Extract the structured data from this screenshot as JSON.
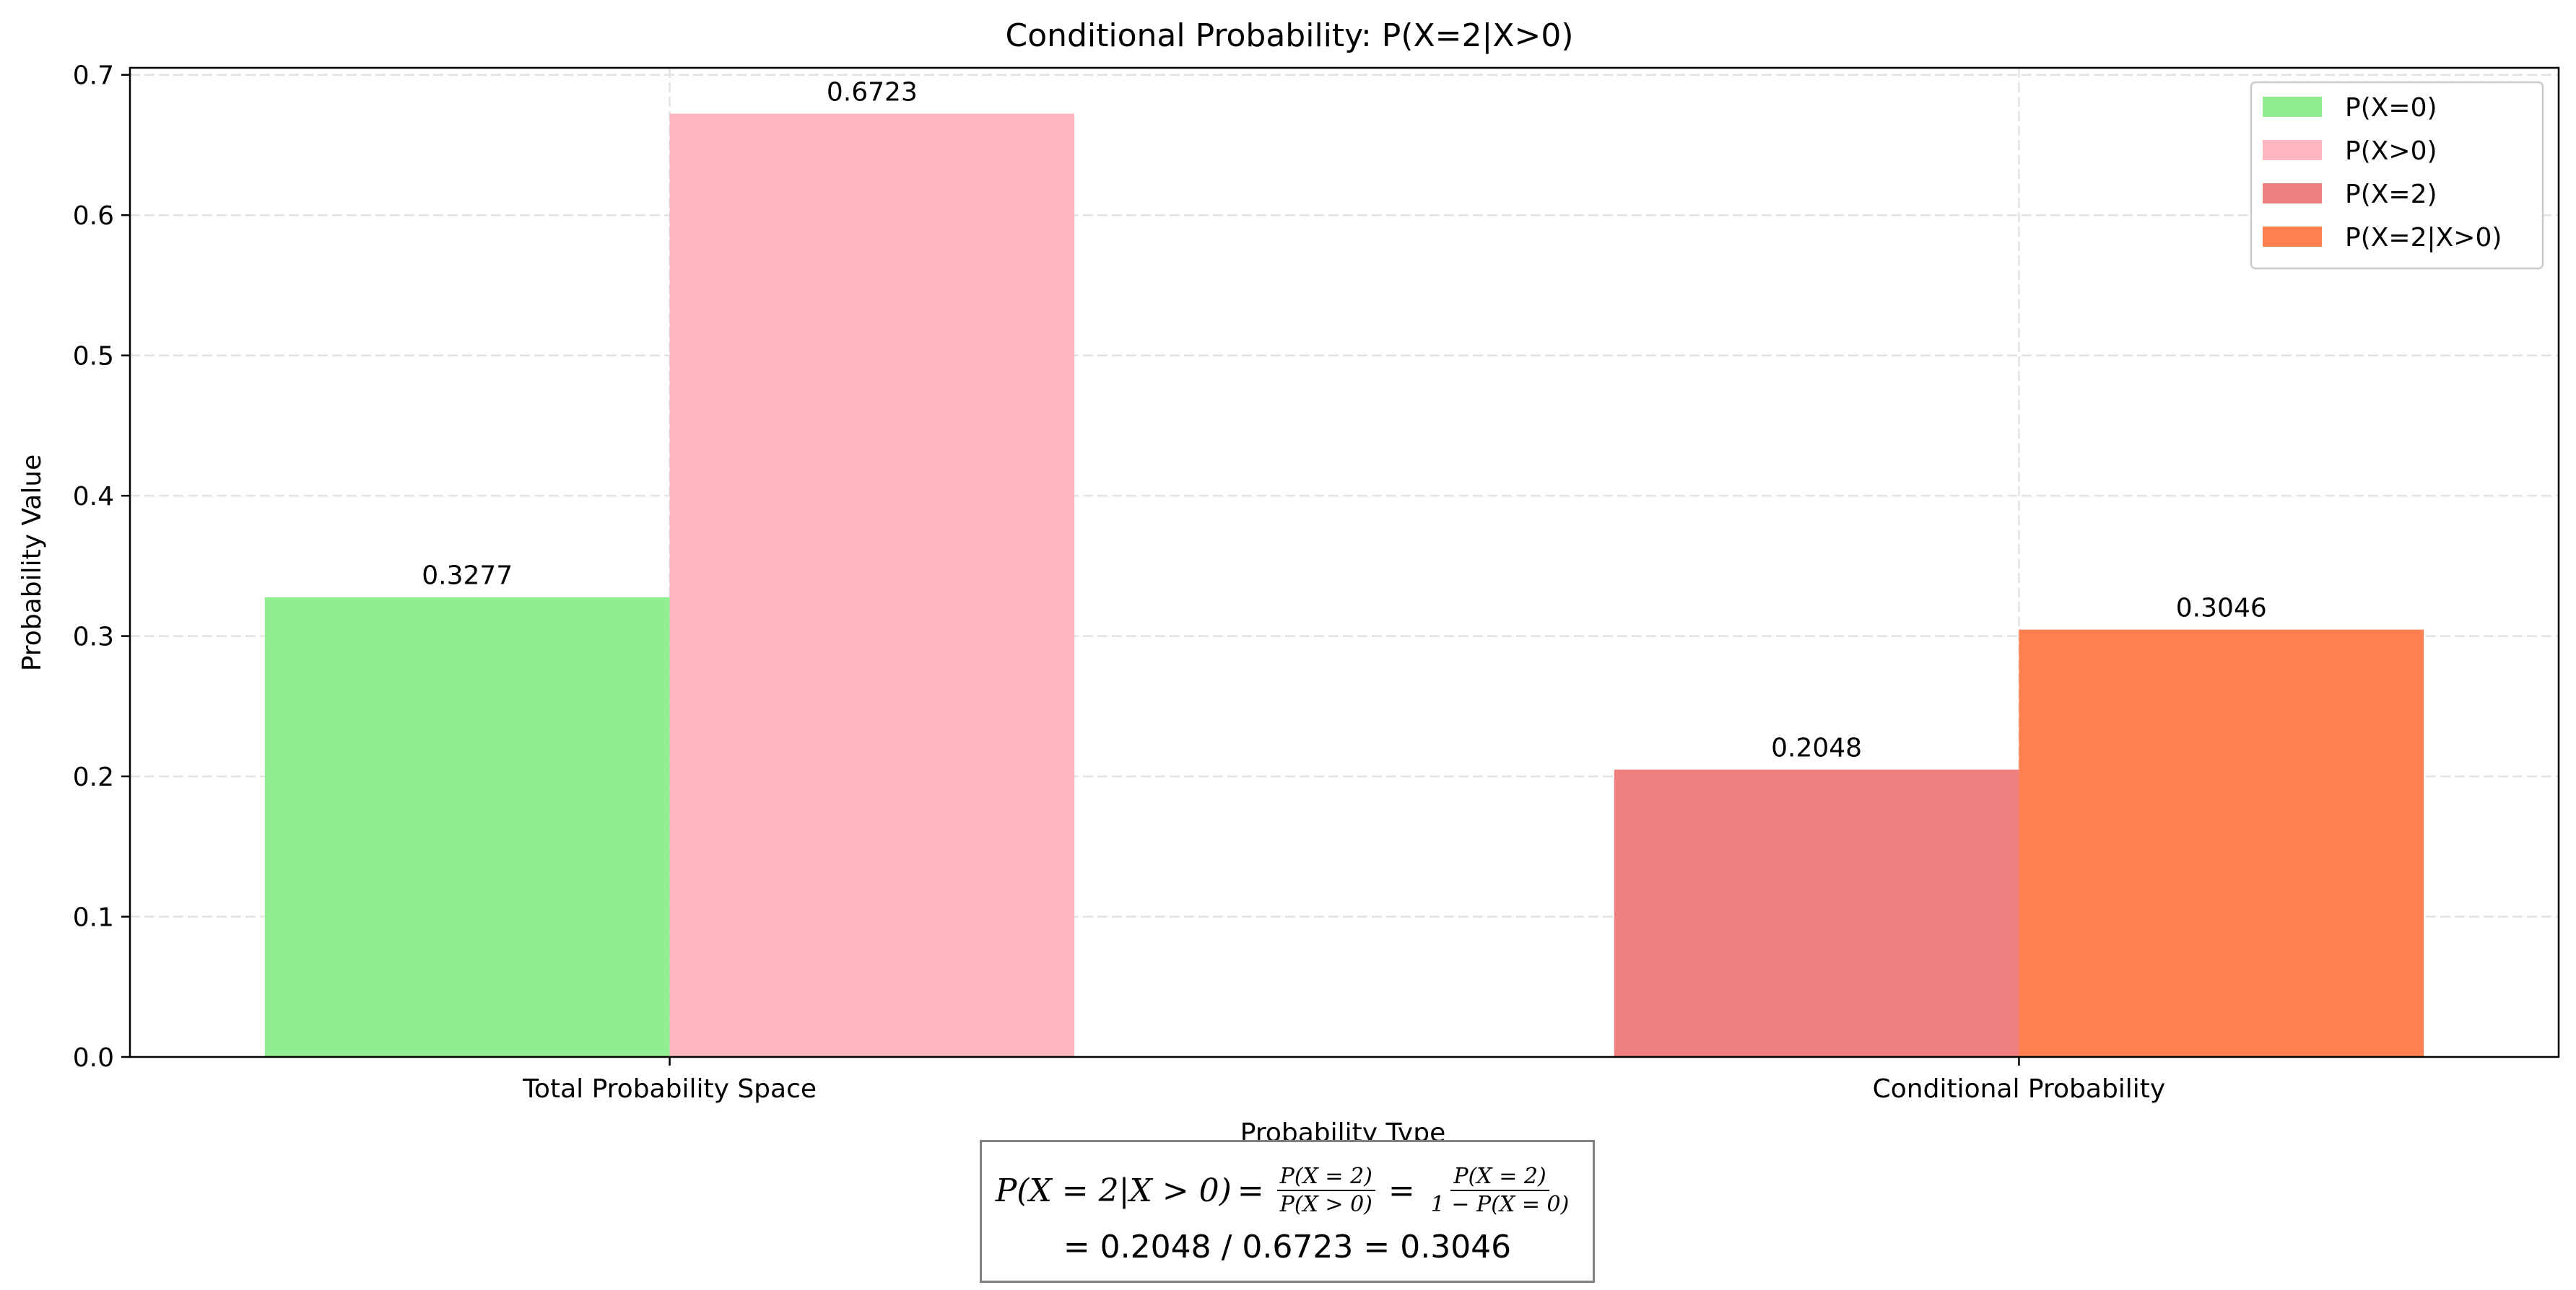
{
  "chart_data": {
    "type": "bar",
    "title": "Conditional Probability: P(X=2|X>0)",
    "xlabel": "Probability Type",
    "ylabel": "Probability Value",
    "ylim": [
      0,
      0.705
    ],
    "yticks": [
      0.0,
      0.1,
      0.2,
      0.3,
      0.4,
      0.5,
      0.6,
      0.7
    ],
    "ytick_labels": [
      "0.0",
      "0.1",
      "0.2",
      "0.3",
      "0.4",
      "0.5",
      "0.6",
      "0.7"
    ],
    "categories": [
      "Total Probability Space",
      "Conditional Probability"
    ],
    "grid": true,
    "legend_position": "top-right",
    "bars": [
      {
        "series": "P(X=0)",
        "category": "Total Probability Space",
        "value": 0.3277,
        "label": "0.3277",
        "color": "#90ee90"
      },
      {
        "series": "P(X>0)",
        "category": "Total Probability Space",
        "value": 0.6723,
        "label": "0.6723",
        "color": "#ffb6c1"
      },
      {
        "series": "P(X=2)",
        "category": "Conditional Probability",
        "value": 0.2048,
        "label": "0.2048",
        "color": "#f08080"
      },
      {
        "series": "P(X=2|X>0)",
        "category": "Conditional Probability",
        "value": 0.3046,
        "label": "0.3046",
        "color": "#ff7f50"
      }
    ],
    "legend": [
      {
        "name": "P(X=0)",
        "color": "#90ee90"
      },
      {
        "name": "P(X>0)",
        "color": "#ffb6c1"
      },
      {
        "name": "P(X=2)",
        "color": "#f08080"
      },
      {
        "name": "P(X=2|X>0)",
        "color": "#ff7f50"
      }
    ]
  },
  "formula": {
    "lhs": "P(X = 2|X > 0)",
    "frac1_num": "P(X = 2)",
    "frac1_den": "P(X > 0)",
    "frac2_num": "P(X = 2)",
    "frac2_den": "1 − P(X = 0)",
    "line2": "= 0.2048 / 0.6723 = 0.3046"
  }
}
